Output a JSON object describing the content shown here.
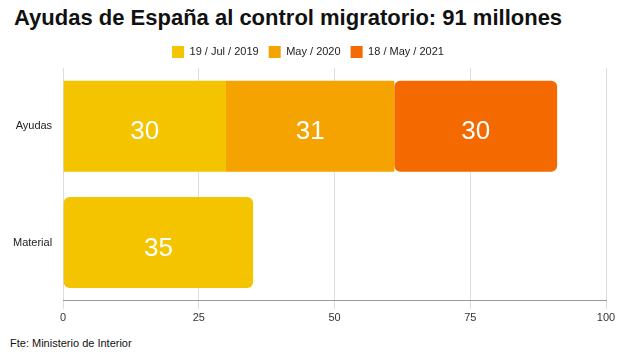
{
  "chart_data": {
    "type": "bar",
    "title": "Ayudas de España al control migratorio: 91 millones",
    "annotations": [
      "Fte: Ministerio de Interior"
    ],
    "orientation": "horizontal",
    "stacked": true,
    "data_labels": true,
    "grid": true,
    "legend": "top",
    "categories": [
      "Ayudas",
      "Material"
    ],
    "series": [
      {
        "name": "19 / Jul / 2019",
        "color": "#f5c400",
        "values": [
          30,
          null
        ]
      },
      {
        "name": "May / 2020",
        "color": "#f5a300",
        "values": [
          31,
          null
        ]
      },
      {
        "name": "18 / May / 2021",
        "color": "#f56a00",
        "values": [
          30,
          null
        ]
      },
      {
        "color": "#f5c400",
        "values": [
          null,
          35
        ]
      }
    ],
    "xlim": [
      0,
      100
    ],
    "xticks": [
      0,
      25,
      50,
      75,
      100
    ]
  }
}
